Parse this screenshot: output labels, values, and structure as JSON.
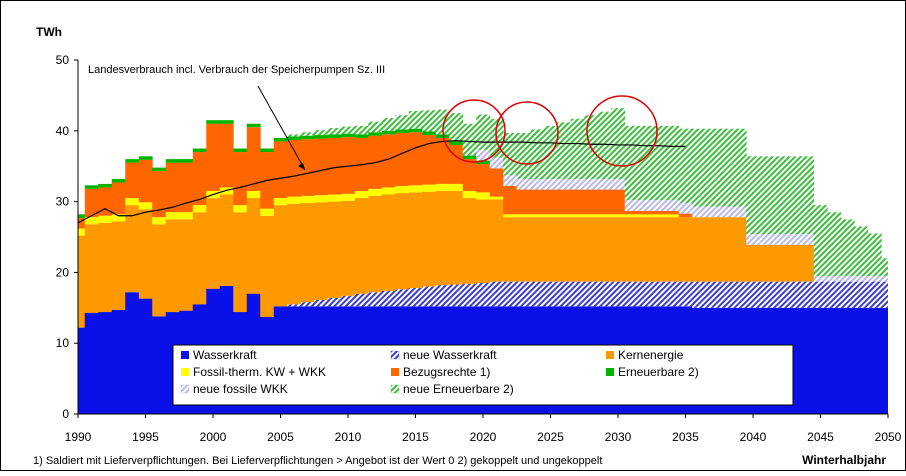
{
  "chart_data": {
    "type": "bar",
    "stacked": true,
    "y_label": "TWh",
    "x_label": "Winterhalbjahr",
    "footnote": "1) Saldiert mit Lieferverpflichtungen. Bei Lieferverpflichtungen > Angebot ist der Wert 0  2) gekoppelt und ungekoppelt",
    "annotation": "Landesverbrauch incl. Verbrauch der Speicherpumpen Sz. III",
    "legend": "bottom center",
    "xlim": [
      1990,
      2050
    ],
    "xticks": [
      1990,
      1995,
      2000,
      2005,
      2010,
      2015,
      2020,
      2025,
      2030,
      2035,
      2040,
      2045,
      2050
    ],
    "ylim": [
      0,
      50
    ],
    "yticks": [
      0,
      10,
      20,
      30,
      40,
      50
    ],
    "x": [
      1990,
      1991,
      1992,
      1993,
      1994,
      1995,
      1996,
      1997,
      1998,
      1999,
      2000,
      2001,
      2002,
      2003,
      2004,
      2005,
      2006,
      2007,
      2008,
      2009,
      2010,
      2011,
      2012,
      2013,
      2014,
      2015,
      2016,
      2017,
      2018,
      2019,
      2020,
      2021,
      2022,
      2023,
      2024,
      2025,
      2026,
      2027,
      2028,
      2029,
      2030,
      2031,
      2032,
      2033,
      2034,
      2035,
      2036,
      2037,
      2038,
      2039,
      2040,
      2041,
      2042,
      2043,
      2044,
      2045,
      2046,
      2047,
      2048,
      2049,
      2050
    ],
    "series": [
      {
        "name": "Wasserkraft",
        "color": "#0a10e8",
        "hatch": false,
        "values": [
          12.2,
          14.3,
          14.4,
          14.7,
          17.2,
          16.3,
          13.8,
          14.4,
          14.6,
          15.5,
          17.7,
          18.1,
          14.4,
          17.0,
          13.7,
          15.2,
          15.2,
          15.2,
          15.2,
          15.2,
          15.2,
          15.2,
          15.2,
          15.2,
          15.2,
          15.2,
          15.2,
          15.2,
          15.2,
          15.2,
          15.2,
          15.2,
          15.2,
          15.2,
          15.2,
          15.2,
          15.2,
          15.2,
          15.2,
          15.2,
          15.2,
          15.2,
          15.2,
          15.2,
          15.2,
          15.2,
          15.0,
          15.0,
          15.0,
          15.0,
          15.0,
          15.0,
          15.0,
          15.0,
          15.0,
          15.0,
          15.0,
          15.0,
          15.0,
          15.0,
          15.0
        ]
      },
      {
        "name": "neue Wasserkraft",
        "color": "#3c3cd0",
        "hatch": true,
        "values": [
          0,
          0,
          0,
          0,
          0,
          0,
          0,
          0,
          0,
          0,
          0,
          0,
          0,
          0,
          0,
          0,
          0.3,
          0.6,
          0.9,
          1.2,
          1.5,
          1.8,
          2.0,
          2.2,
          2.4,
          2.6,
          2.8,
          3.0,
          3.1,
          3.2,
          3.3,
          3.5,
          3.5,
          3.5,
          3.5,
          3.5,
          3.5,
          3.5,
          3.5,
          3.5,
          3.5,
          3.5,
          3.5,
          3.5,
          3.5,
          3.5,
          3.7,
          3.7,
          3.7,
          3.7,
          3.7,
          3.7,
          3.7,
          3.7,
          3.7,
          3.7,
          3.7,
          3.7,
          3.7,
          3.7,
          3.7
        ]
      },
      {
        "name": "Kernenergie",
        "color": "#ff9900",
        "hatch": false,
        "values": [
          13.0,
          12.5,
          12.6,
          12.5,
          12.3,
          12.6,
          13.0,
          13.1,
          12.9,
          13.0,
          12.8,
          12.9,
          14.1,
          13.5,
          14.3,
          14.3,
          14.2,
          14.0,
          13.8,
          13.6,
          13.4,
          13.5,
          13.6,
          13.6,
          13.6,
          13.5,
          13.4,
          13.3,
          13.2,
          12.1,
          11.8,
          11.6,
          9.1,
          9.1,
          9.1,
          9.1,
          9.1,
          9.1,
          9.1,
          9.1,
          9.1,
          9.1,
          9.1,
          9.1,
          9.1,
          9.1,
          9.1,
          9.1,
          9.1,
          9.1,
          5.2,
          5.2,
          5.2,
          5.2,
          5.2,
          0,
          0,
          0,
          0,
          0,
          0
        ]
      },
      {
        "name": "Fossil-therm. KW + WKK",
        "color": "#ffff00",
        "hatch": false,
        "values": [
          1.0,
          1.0,
          1.0,
          1.0,
          1.0,
          1.0,
          1.0,
          1.0,
          1.0,
          1.0,
          1.0,
          1.0,
          1.0,
          1.0,
          1.0,
          1.0,
          1.0,
          1.0,
          1.0,
          1.0,
          1.0,
          1.0,
          1.0,
          1.0,
          1.0,
          1.0,
          1.0,
          1.0,
          1.0,
          1.0,
          1.0,
          0.4,
          0.4,
          0.4,
          0.4,
          0.4,
          0.4,
          0.4,
          0.4,
          0.4,
          0.4,
          0.4,
          0.4,
          0.4,
          0.4,
          0,
          0,
          0,
          0,
          0,
          0,
          0,
          0,
          0,
          0,
          0,
          0,
          0,
          0,
          0,
          0
        ]
      },
      {
        "name": "Bezugsrechte 1)",
        "color": "#ff6600",
        "hatch": false,
        "values": [
          1.5,
          4,
          4,
          4.5,
          5,
          6,
          6.5,
          7,
          7,
          7.5,
          9.5,
          9,
          7.5,
          9,
          8,
          8,
          8,
          8,
          8,
          8,
          8,
          7.5,
          7.5,
          7.5,
          7.5,
          7.5,
          7,
          6.5,
          5.5,
          4.5,
          4,
          4,
          4,
          3.5,
          3.5,
          3.5,
          3.5,
          3.5,
          3.5,
          3.5,
          3.5,
          0.5,
          0.5,
          0.5,
          0.5,
          0.5,
          0,
          0,
          0,
          0,
          0,
          0,
          0,
          0,
          0,
          0,
          0,
          0,
          0,
          0,
          0
        ]
      },
      {
        "name": "Erneuerbare 2)",
        "color": "#00b400",
        "hatch": false,
        "values": [
          0.5,
          0.5,
          0.5,
          0.5,
          0.5,
          0.5,
          0.5,
          0.5,
          0.5,
          0.5,
          0.5,
          0.5,
          0.5,
          0.5,
          0.5,
          0.5,
          0.5,
          0.5,
          0.5,
          0.5,
          0.5,
          0.5,
          0.5,
          0.5,
          0.5,
          0.5,
          0.5,
          0.5,
          0.5,
          0.5,
          0.5,
          0,
          0,
          0,
          0,
          0,
          0,
          0,
          0,
          0,
          0,
          0,
          0,
          0,
          0,
          0,
          0,
          0,
          0,
          0,
          0,
          0,
          0,
          0,
          0,
          0,
          0,
          0,
          0,
          0,
          0
        ]
      },
      {
        "name": "neue fossile WKK",
        "color": "#b8b8ee",
        "hatch": true,
        "values": [
          0,
          0,
          0,
          0,
          0,
          0,
          0,
          0,
          0,
          0,
          0,
          0,
          0,
          0,
          0,
          0,
          0,
          0,
          0,
          0,
          0,
          0,
          0,
          0,
          0,
          0,
          0,
          0,
          0,
          0,
          1.5,
          1.5,
          1.5,
          1.5,
          1.5,
          1.5,
          1.5,
          1.5,
          1.5,
          1.5,
          1.5,
          1.5,
          1.5,
          1.5,
          1.5,
          1.5,
          1.5,
          1.5,
          1.5,
          1.5,
          1.5,
          1.5,
          1.5,
          1.5,
          1.5,
          0.8,
          0.8,
          0.8,
          0.8,
          0.8,
          0.8
        ]
      },
      {
        "name": "neue Erneuerbare 2)",
        "color": "#3cbe3c",
        "hatch": true,
        "values": [
          0,
          0,
          0,
          0,
          0,
          0,
          0,
          0,
          0,
          0,
          0,
          0,
          0,
          0,
          0,
          0,
          0.3,
          0.5,
          0.7,
          0.9,
          1.0,
          1.2,
          1.5,
          1.8,
          2.0,
          2.5,
          3.0,
          3.5,
          4.0,
          4.5,
          5.0,
          5.5,
          6,
          6.5,
          7,
          7.5,
          8,
          8.5,
          9,
          9.5,
          10,
          10.5,
          10.5,
          10.5,
          10.5,
          10.5,
          11,
          11,
          11,
          11,
          11,
          11,
          11,
          11,
          11,
          10,
          9,
          8,
          7,
          6,
          2.5
        ]
      }
    ],
    "consumption": {
      "color": "#000000",
      "values": [
        27,
        28,
        29,
        28,
        28,
        28.5,
        28.8,
        29.2,
        29.8,
        30.3,
        31,
        31.6,
        32,
        32.5,
        33,
        33.3,
        33.6,
        34,
        34.4,
        34.8,
        35,
        35.2,
        35.5,
        36,
        36.8,
        37.6,
        38.2,
        38.5,
        38.6,
        38.5,
        38.4,
        38.4,
        38.4,
        38.4,
        38.3,
        38.3,
        38.2,
        38.2,
        38.1,
        38.1,
        38,
        38,
        37.9,
        37.9,
        37.8,
        37.8,
        null,
        null,
        null,
        null,
        null,
        null,
        null,
        null,
        null,
        null,
        null,
        null,
        null,
        null,
        null
      ]
    }
  }
}
